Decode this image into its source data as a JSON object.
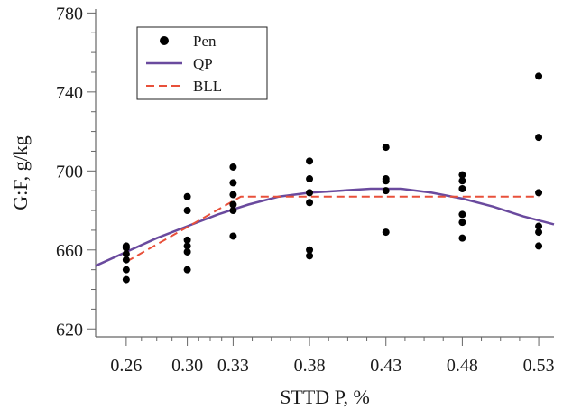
{
  "chart_data": {
    "type": "scatter",
    "xlabel": "STTD P, %",
    "ylabel": "G:F, g/kg",
    "xlim": [
      0.24,
      0.54
    ],
    "ylim": [
      616,
      782
    ],
    "x_ticks": [
      0.26,
      0.3,
      0.33,
      0.38,
      0.43,
      0.48,
      0.53
    ],
    "x_tick_labels": [
      "0.26",
      "0.30",
      "0.33",
      "0.38",
      "0.43",
      "0.48",
      "0.53"
    ],
    "y_ticks": [
      620,
      660,
      700,
      740,
      780
    ],
    "y_tick_labels": [
      "620",
      "660",
      "700",
      "740",
      "780"
    ],
    "legend": {
      "position": "top-left",
      "entries": [
        "Pen",
        "QP",
        "BLL"
      ]
    },
    "series": [
      {
        "name": "Pen",
        "kind": "points",
        "color": "#000000",
        "points": [
          [
            0.26,
            645
          ],
          [
            0.26,
            650
          ],
          [
            0.26,
            655
          ],
          [
            0.26,
            658
          ],
          [
            0.26,
            661
          ],
          [
            0.26,
            662
          ],
          [
            0.3,
            650
          ],
          [
            0.3,
            659
          ],
          [
            0.3,
            662
          ],
          [
            0.3,
            665
          ],
          [
            0.3,
            680
          ],
          [
            0.3,
            687
          ],
          [
            0.33,
            667
          ],
          [
            0.33,
            680
          ],
          [
            0.33,
            683
          ],
          [
            0.33,
            688
          ],
          [
            0.33,
            694
          ],
          [
            0.33,
            702
          ],
          [
            0.38,
            657
          ],
          [
            0.38,
            660
          ],
          [
            0.38,
            684
          ],
          [
            0.38,
            689
          ],
          [
            0.38,
            696
          ],
          [
            0.38,
            705
          ],
          [
            0.43,
            669
          ],
          [
            0.43,
            690
          ],
          [
            0.43,
            695
          ],
          [
            0.43,
            696
          ],
          [
            0.43,
            712
          ],
          [
            0.48,
            666
          ],
          [
            0.48,
            674
          ],
          [
            0.48,
            678
          ],
          [
            0.48,
            691
          ],
          [
            0.48,
            695
          ],
          [
            0.48,
            698
          ],
          [
            0.53,
            662
          ],
          [
            0.53,
            669
          ],
          [
            0.53,
            672
          ],
          [
            0.53,
            689
          ],
          [
            0.53,
            717
          ],
          [
            0.53,
            748
          ]
        ]
      },
      {
        "name": "QP",
        "kind": "line",
        "color": "#6a4a9e",
        "points": [
          [
            0.24,
            652
          ],
          [
            0.26,
            659
          ],
          [
            0.28,
            666
          ],
          [
            0.3,
            672
          ],
          [
            0.32,
            678
          ],
          [
            0.34,
            683
          ],
          [
            0.36,
            687
          ],
          [
            0.38,
            689
          ],
          [
            0.4,
            690
          ],
          [
            0.42,
            691
          ],
          [
            0.44,
            691
          ],
          [
            0.46,
            689
          ],
          [
            0.48,
            686
          ],
          [
            0.5,
            682
          ],
          [
            0.52,
            677
          ],
          [
            0.54,
            673
          ]
        ]
      },
      {
        "name": "BLL",
        "kind": "dashed-line",
        "color": "#e8503a",
        "points": [
          [
            0.26,
            654
          ],
          [
            0.335,
            687
          ],
          [
            0.53,
            687
          ]
        ]
      }
    ]
  }
}
